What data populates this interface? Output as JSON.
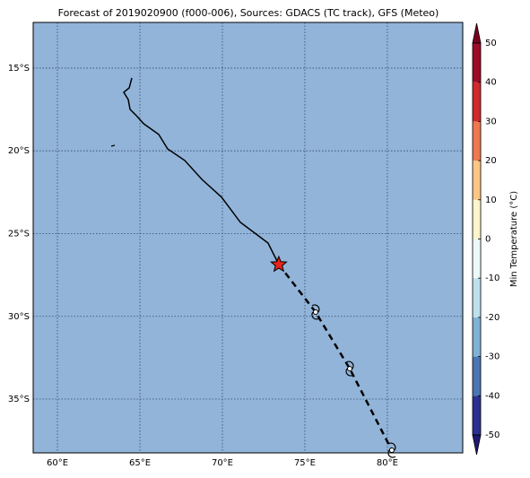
{
  "chart_data": {
    "type": "map",
    "title": "Forecast of 2019020900 (f000-006), Sources: GDACS (TC track), GFS (Meteo)",
    "background": "#92b4d9",
    "grid": true,
    "xlim": [
      58.53,
      84.57
    ],
    "ylim": [
      -38.25,
      -12.24
    ],
    "xticks": [
      {
        "value": 60,
        "label": "60°E"
      },
      {
        "value": 65,
        "label": "65°E"
      },
      {
        "value": 70,
        "label": "70°E"
      },
      {
        "value": 75,
        "label": "75°E"
      },
      {
        "value": 80,
        "label": "80°E"
      }
    ],
    "yticks": [
      {
        "value": -15,
        "label": "15°S"
      },
      {
        "value": -20,
        "label": "20°S"
      },
      {
        "value": -25,
        "label": "25°S"
      },
      {
        "value": -30,
        "label": "30°S"
      },
      {
        "value": -35,
        "label": "35°S"
      }
    ],
    "track": {
      "lon": [
        64.51,
        64.35,
        64.02,
        64.29,
        64.4,
        64.78,
        65.22,
        66.14,
        66.68,
        67.72,
        68.75,
        69.95,
        71.09,
        71.9,
        72.77,
        73.42
      ],
      "lat": [
        -15.6,
        -16.19,
        -16.46,
        -16.9,
        -17.49,
        -17.87,
        -18.36,
        -19.01,
        -19.88,
        -20.58,
        -21.72,
        -22.8,
        -24.32,
        -24.92,
        -25.57,
        -26.87
      ]
    },
    "forecast": {
      "lon": [
        73.42,
        75.65,
        77.72,
        80.27
      ],
      "lat": [
        -26.87,
        -29.74,
        -33.16,
        -38.09
      ]
    },
    "colorbar": {
      "label": "Min Temperature (°C)",
      "levels": [
        -50,
        -40,
        -30,
        -20,
        -10,
        0,
        10,
        20,
        30,
        40,
        50
      ],
      "colors": [
        "#2b3190",
        "#4a76b2",
        "#7fb2d4",
        "#bde0ec",
        "#ecf8fa",
        "#fef5cc",
        "#fdc684",
        "#f0774f",
        "#cf2a2c",
        "#9e0b27"
      ],
      "under": "#1d1a70",
      "over": "#7a0020"
    }
  }
}
